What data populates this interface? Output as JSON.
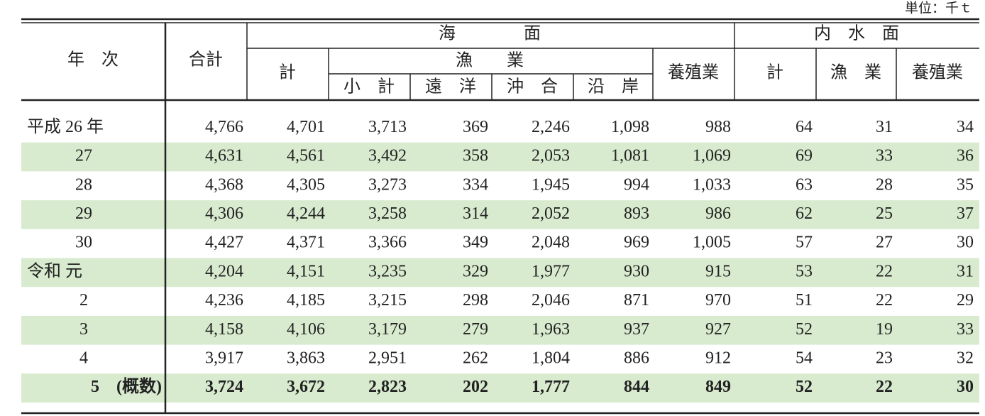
{
  "unit": "単位：千ｔ",
  "header": {
    "year": "年　次",
    "total": "合計",
    "sea": "海　　　　面",
    "sea_total": "計",
    "sea_fishing": "漁　　業",
    "sea_subtotal": "小　計",
    "distant": "遠　洋",
    "offshore": "沖　合",
    "coastal": "沿　岸",
    "sea_aquaculture": "養殖業",
    "inland": "内　水　面",
    "inland_total": "計",
    "inland_fishing": "漁　業",
    "inland_aquaculture": "養殖業"
  },
  "rows": [
    {
      "year": "平成 26 年",
      "values": [
        "4,766",
        "4,701",
        "3,713",
        "369",
        "2,246",
        "1,098",
        "988",
        "64",
        "31",
        "34"
      ]
    },
    {
      "year": "27",
      "values": [
        "4,631",
        "4,561",
        "3,492",
        "358",
        "2,053",
        "1,081",
        "1,069",
        "69",
        "33",
        "36"
      ]
    },
    {
      "year": "28",
      "values": [
        "4,368",
        "4,305",
        "3,273",
        "334",
        "1,945",
        "994",
        "1,033",
        "63",
        "28",
        "35"
      ]
    },
    {
      "year": "29",
      "values": [
        "4,306",
        "4,244",
        "3,258",
        "314",
        "2,052",
        "893",
        "986",
        "62",
        "25",
        "37"
      ]
    },
    {
      "year": "30",
      "values": [
        "4,427",
        "4,371",
        "3,366",
        "349",
        "2,048",
        "969",
        "1,005",
        "57",
        "27",
        "30"
      ]
    },
    {
      "year": "令和 元",
      "values": [
        "4,204",
        "4,151",
        "3,235",
        "329",
        "1,977",
        "930",
        "915",
        "53",
        "22",
        "31"
      ]
    },
    {
      "year": "2",
      "values": [
        "4,236",
        "4,185",
        "3,215",
        "298",
        "2,046",
        "871",
        "970",
        "51",
        "22",
        "29"
      ]
    },
    {
      "year": "3",
      "values": [
        "4,158",
        "4,106",
        "3,179",
        "279",
        "1,963",
        "937",
        "927",
        "52",
        "19",
        "33"
      ]
    },
    {
      "year": "4",
      "values": [
        "3,917",
        "3,863",
        "2,951",
        "262",
        "1,804",
        "886",
        "912",
        "54",
        "23",
        "32"
      ]
    },
    {
      "year": "5　(概数)",
      "values": [
        "3,724",
        "3,672",
        "2,823",
        "202",
        "1,777",
        "844",
        "849",
        "52",
        "22",
        "30"
      ]
    }
  ]
}
